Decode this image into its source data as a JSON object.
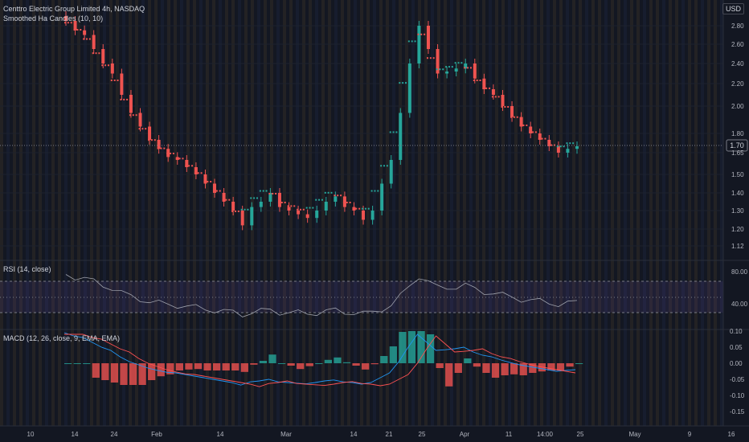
{
  "main_pane": {
    "symbol": "Centtro Electric Group Limited",
    "interval": "4h",
    "exchange": "NASDAQ",
    "indicator": "Smoothed Ha Candles (10, 10)",
    "currency": "USD",
    "last_price": "1.70"
  },
  "rsi_pane": {
    "label": "RSI (14, close)",
    "ticks": [
      "80.00",
      "40.00"
    ]
  },
  "macd_pane": {
    "label": "MACD (12, 26, close, 9, EMA, EMA)",
    "ticks": [
      "0.10",
      "0.05",
      "0.00",
      "-0.05",
      "-0.10",
      "-0.15"
    ]
  },
  "x_axis": [
    "10",
    "14",
    "24",
    "Feb",
    "14",
    "Mar",
    "14",
    "21",
    "25",
    "Apr",
    "11",
    "14:00",
    "25",
    "May",
    "9",
    "16"
  ],
  "colors": {
    "bg": "#131722",
    "up": "#26a69a",
    "down": "#ef5350",
    "rsi": "#a0a3ad",
    "macd": "#2196f3",
    "signal": "#ff5252",
    "ha_up": "#26a69a",
    "ha_down": "#ef5350"
  },
  "chart_data": {
    "type": "line",
    "price_scale_ticks": [
      "2.80",
      "2.60",
      "2.40",
      "2.20",
      "2.00",
      "1.80",
      "1.65",
      "1.50",
      "1.40",
      "1.30",
      "1.20",
      "1.12"
    ],
    "close_series": [
      2.85,
      2.75,
      2.7,
      2.55,
      2.4,
      2.3,
      2.1,
      1.95,
      1.85,
      1.75,
      1.68,
      1.62,
      1.6,
      1.55,
      1.5,
      1.45,
      1.4,
      1.35,
      1.3,
      1.22,
      1.32,
      1.35,
      1.4,
      1.32,
      1.3,
      1.28,
      1.26,
      1.3,
      1.35,
      1.38,
      1.32,
      1.3,
      1.25,
      1.3,
      1.45,
      1.6,
      1.95,
      2.4,
      2.8,
      2.55,
      2.3,
      2.32,
      2.35,
      2.4,
      2.25,
      2.15,
      2.1,
      2.0,
      1.92,
      1.85,
      1.8,
      1.75,
      1.7,
      1.65,
      1.68,
      1.7
    ]
  }
}
